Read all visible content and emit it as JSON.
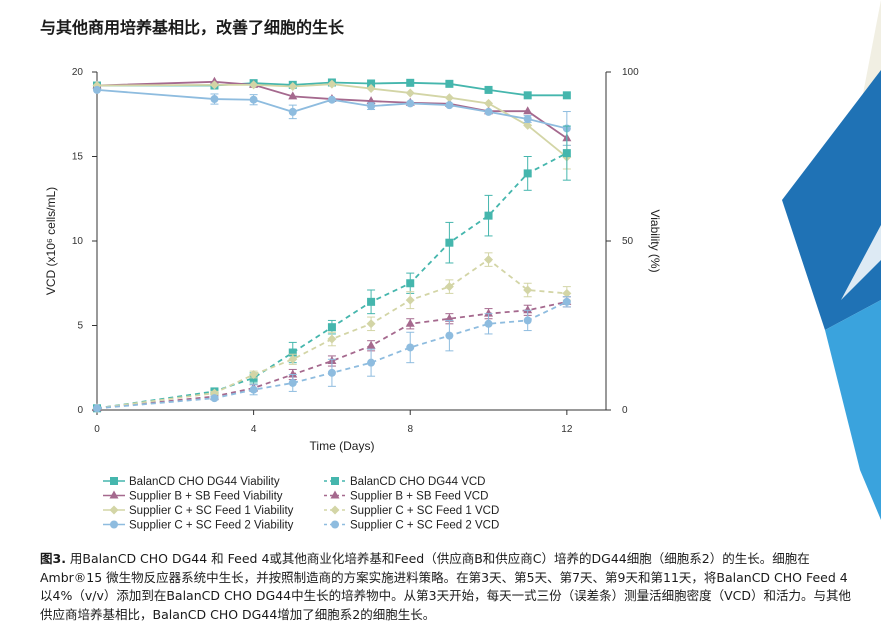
{
  "heading": "与其他商用培养基相比，改善了细胞的生长",
  "chart_data": {
    "type": "line",
    "xlabel": "Time (Days)",
    "ylabel_left": "VCD (x10⁶ cells/mL)",
    "ylabel_right": "Viability (%)",
    "xlim": [
      0,
      13
    ],
    "x_ticks": [
      0,
      4,
      8,
      12
    ],
    "ylim_left": [
      0,
      20
    ],
    "y_ticks_left": [
      0,
      5,
      10,
      15,
      20
    ],
    "ylim_right": [
      0,
      100
    ],
    "y_ticks_right": [
      0,
      50,
      100
    ],
    "grid": false,
    "legend_position": "bottom",
    "series": [
      {
        "name": "BalanCD CHO DG44 Viability",
        "axis": "right",
        "color": "#45b6ad",
        "marker": "square",
        "dashed": false,
        "x": [
          0,
          3,
          4,
          5,
          6,
          7,
          8,
          9,
          10,
          11,
          12
        ],
        "y": [
          96,
          96,
          96.7,
          96.2,
          96.9,
          96.6,
          96.8,
          96.5,
          94.7,
          93.1,
          93.1
        ],
        "err": [
          0,
          0,
          0,
          0,
          0,
          0,
          0,
          0,
          0,
          0,
          0
        ]
      },
      {
        "name": "Supplier B + SB Feed Viability",
        "axis": "right",
        "color": "#a5698e",
        "marker": "triangle",
        "dashed": false,
        "x": [
          0,
          3,
          4,
          5,
          6,
          7,
          8,
          9,
          10,
          11,
          12
        ],
        "y": [
          96,
          97.1,
          96.2,
          92.8,
          92.0,
          91.4,
          90.9,
          90.6,
          88.4,
          88.4,
          80.4
        ],
        "err": [
          0,
          0,
          0,
          0,
          0,
          0,
          0,
          0,
          0,
          0,
          0
        ]
      },
      {
        "name": "Supplier C + SC Feed 1 Viability",
        "axis": "right",
        "color": "#d3d5a6",
        "marker": "diamond",
        "dashed": false,
        "x": [
          0,
          3,
          4,
          5,
          6,
          7,
          8,
          9,
          10,
          11,
          12
        ],
        "y": [
          96,
          96.2,
          96.2,
          95.7,
          96.4,
          95.1,
          93.8,
          92.4,
          90.7,
          84.2,
          74.8
        ],
        "err": [
          0,
          0,
          0,
          0,
          0,
          0,
          0,
          0,
          0,
          0,
          3.5
        ]
      },
      {
        "name": "Supplier C + SC Feed 2 Viability",
        "axis": "right",
        "color": "#8ebcdf",
        "marker": "circle",
        "dashed": false,
        "x": [
          0,
          3,
          4,
          5,
          6,
          7,
          8,
          9,
          10,
          11,
          12
        ],
        "y": [
          94.7,
          92.0,
          91.8,
          88.2,
          91.8,
          89.9,
          90.7,
          90.2,
          88.2,
          86.1,
          83.3
        ],
        "err": [
          0,
          1.5,
          1.5,
          2,
          0,
          1,
          0,
          0,
          0,
          1,
          5
        ]
      },
      {
        "name": "BalanCD CHO DG44 VCD",
        "axis": "left",
        "color": "#45b6ad",
        "marker": "square",
        "dashed": true,
        "x": [
          0,
          3,
          4,
          5,
          6,
          7,
          8,
          9,
          10,
          11,
          12
        ],
        "y": [
          0.1,
          1.1,
          1.9,
          3.4,
          4.9,
          6.4,
          7.5,
          9.9,
          11.5,
          14.0,
          15.2
        ],
        "err": [
          0,
          0.1,
          0.3,
          0.6,
          0.4,
          0.7,
          0.6,
          1.2,
          1.2,
          1.0,
          1.6
        ]
      },
      {
        "name": "Supplier B + SB Feed VCD",
        "axis": "left",
        "color": "#a5698e",
        "marker": "triangle",
        "dashed": true,
        "x": [
          0,
          3,
          4,
          5,
          6,
          7,
          8,
          9,
          10,
          11,
          12
        ],
        "y": [
          0.1,
          0.8,
          1.3,
          2.1,
          2.9,
          3.8,
          5.1,
          5.4,
          5.7,
          5.9,
          6.4
        ],
        "err": [
          0,
          0.1,
          0.2,
          0.3,
          0.3,
          0.3,
          0.3,
          0.3,
          0.3,
          0.3,
          0.3
        ]
      },
      {
        "name": "Supplier C + SC Feed 1 VCD",
        "axis": "left",
        "color": "#d3d5a6",
        "marker": "diamond",
        "dashed": true,
        "x": [
          0,
          3,
          4,
          5,
          6,
          7,
          8,
          9,
          10,
          11,
          12
        ],
        "y": [
          0.1,
          1.0,
          2.1,
          3.0,
          4.2,
          5.1,
          6.5,
          7.3,
          8.9,
          7.1,
          6.9
        ],
        "err": [
          0,
          0.1,
          0.2,
          0.3,
          0.4,
          0.4,
          0.5,
          0.4,
          0.4,
          0.4,
          0.4
        ]
      },
      {
        "name": "Supplier C + SC Feed 2 VCD",
        "axis": "left",
        "color": "#8ebcdf",
        "marker": "circle",
        "dashed": true,
        "x": [
          0,
          3,
          4,
          5,
          6,
          7,
          8,
          9,
          10,
          11,
          12
        ],
        "y": [
          0.1,
          0.7,
          1.2,
          1.6,
          2.2,
          2.8,
          3.7,
          4.4,
          5.1,
          5.3,
          6.4
        ],
        "err": [
          0,
          0.1,
          0.3,
          0.5,
          0.8,
          0.8,
          0.9,
          0.9,
          0.6,
          0.6,
          0.3
        ]
      }
    ]
  },
  "caption": {
    "figure_label": "图3.",
    "text": " 用BalanCD CHO DG44 和 Feed 4或其他商业化培养基和Feed（供应商B和供应商C）培养的DG44细胞（细胞系2）的生长。细胞在Ambr®15 微生物反应器系统中生长，并按照制造商的方案实施进料策略。在第3天、第5天、第7天、第9天和第11天，将BalanCD CHO Feed 4以4%（v/v）添加到在BalanCD CHO DG44中生长的培养物中。从第3天开始，每天一式三份（误差条）测量活细胞密度（VCD）和活力。与其他供应商培养基相比，BalanCD CHO DG44增加了细胞系2的细胞生长。"
  },
  "colors": {
    "decor_blue_dark": "#1f72b5",
    "decor_blue_light": "#3aa3dd",
    "decor_cream": "#f1efe3"
  }
}
